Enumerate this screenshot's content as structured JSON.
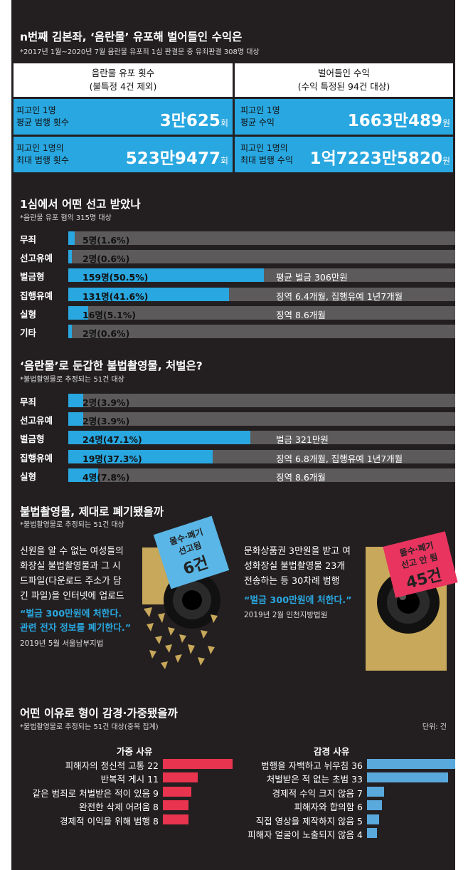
{
  "section1": {
    "title": "n번째 김본좌, ‘음란물’ 유포해 벌어들인 수익은",
    "note": "*2017년 1월~2020년 7월 음란물 유포죄 1심 판결문 중 유죄판결 308명 대상",
    "col1": {
      "head1": "음란물 유포 횟수",
      "head2": "(불특정 4건 제외)",
      "row1_label1": "피고인 1명",
      "row1_label2": "평균 범행 횟수",
      "row1_value": "3만625",
      "row1_unit": "회",
      "row2_label1": "피고인 1명의",
      "row2_label2": "최대 범행 횟수",
      "row2_value": "523만9477",
      "row2_unit": "회"
    },
    "col2": {
      "head1": "벌어들인 수익",
      "head2": "(수익 특정된 94건 대상)",
      "row1_label1": "피고인 1명",
      "row1_label2": "평균 수익",
      "row1_value": "1663만489",
      "row1_unit": "원",
      "row2_label1": "피고인 1명의",
      "row2_label2": "최대 범행 수익",
      "row2_value": "1억7223만5820",
      "row2_unit": "원"
    }
  },
  "section4": {
    "title": "불법촬영물, 제대로 폐기됐을까",
    "note": "*불법촬영물로 추정되는 51건 대상",
    "left": {
      "story": [
        "신원을 알 수 없는 여성들의",
        "화장실 불법촬영물과 그 시",
        "드파일(다운로드 주소가 담",
        "긴 파일)을 인터넷에 업로드"
      ],
      "quote": [
        "“벌금 300만원에 처한다.",
        "관련 전자 정보를 폐기한다.”"
      ],
      "court": "2019년 5월 서울남부지법",
      "badge1": "몰수·폐기",
      "badge2": "선고됨",
      "badge3": "6건"
    },
    "right": {
      "story": [
        "문화상품권 3만원을 받고 여",
        "성화장실 불법촬영물 23개",
        "전송하는 등 30차례 범행"
      ],
      "quote": [
        "“벌금 300만원에 처한다.”"
      ],
      "court": "2019년 2월 인천지방법원",
      "badge1": "몰수·폐기",
      "badge2": "선고 안 됨",
      "badge3": "45건"
    }
  },
  "chart_data": [
    {
      "type": "bar",
      "title": "1심에서 어떤 선고 받았나",
      "subtitle": "*음란물 유포 혐의 315명 대상",
      "categories": [
        "무죄",
        "선고유예",
        "벌금형",
        "집행유예",
        "실형",
        "기타"
      ],
      "values": [
        5,
        2,
        159,
        131,
        16,
        2
      ],
      "percents": [
        1.6,
        0.6,
        50.5,
        41.6,
        5.1,
        0.6
      ],
      "value_labels": [
        "5명(1.6%)",
        "2명(0.6%)",
        "159명(50.5%)",
        "131명(41.6%)",
        "16명(5.1%)",
        "2명(0.6%)"
      ],
      "notes": [
        "",
        "",
        "평균 벌금 306만원",
        "징역 6.4개월, 집행유예 1년7개월",
        "징역 8.6개월",
        ""
      ],
      "color": "#29a7e0",
      "track_color": "#5c5a5b"
    },
    {
      "type": "bar",
      "title": "‘음란물’로 둔갑한 불법촬영물, 처벌은?",
      "subtitle": "*불법촬영물로 추정되는 51건 대상",
      "categories": [
        "무죄",
        "선고유예",
        "벌금형",
        "집행유예",
        "실형"
      ],
      "values": [
        2,
        2,
        24,
        19,
        4
      ],
      "percents": [
        3.9,
        3.9,
        47.1,
        37.3,
        7.8
      ],
      "value_labels": [
        "2명(3.9%)",
        "2명(3.9%)",
        "24명(47.1%)",
        "19명(37.3%)",
        "4명(7.8%)"
      ],
      "notes": [
        "",
        "",
        "벌금 321만원",
        "징역 6.8개월, 집행유예 1년7개월",
        "징역 8.6개월"
      ],
      "color": "#29a7e0",
      "track_color": "#5c5a5b"
    },
    {
      "type": "bar",
      "title": "어떤 이유로 형이 감경·가중됐을까",
      "subtitle": "*불법촬영물로 추정되는 51건 대상(중복 집계)",
      "unit": "단위: 건",
      "groups": [
        {
          "name": "가중 사유",
          "color": "#e8344e",
          "labels": [
            "피해자의 정신적 고통 22",
            "반복적 게시 11",
            "같은 범죄로 처벌받은 적이 있음 9",
            "완전한 삭제 어려움 8",
            "경제적 이익을 위해 범행 8"
          ],
          "values": [
            22,
            11,
            9,
            8,
            8
          ]
        },
        {
          "name": "감경 사유",
          "color": "#5aa9dd",
          "labels": [
            "범행을 자백하고 뉘우침 36",
            "처벌받은 적 없는 초범 33",
            "경제적 수익 크지 않음 7",
            "피해자와 합의함 6",
            "직접 영상을 제작하지 않음 5",
            "피해자 얼굴이 노출되지 않음 4"
          ],
          "values": [
            36,
            33,
            7,
            6,
            5,
            4
          ]
        }
      ]
    }
  ]
}
